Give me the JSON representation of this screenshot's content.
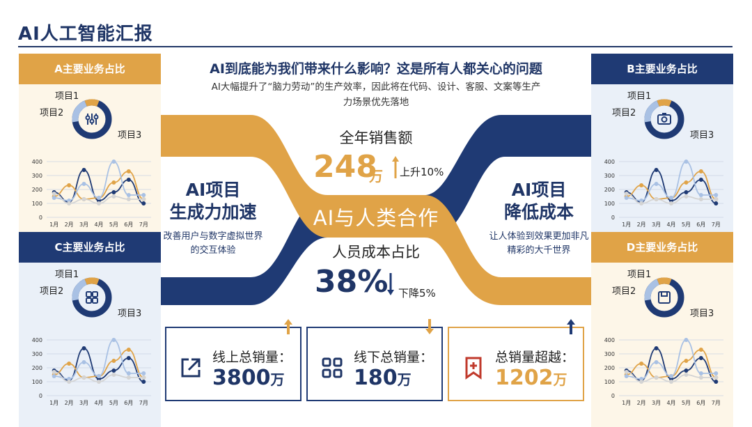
{
  "page_title": "AI人工智能汇报",
  "center": {
    "question": "AI到底能为我们带来什么影响？这是所有人都关心的问题",
    "description": "AI大幅提升了“脑力劳动”的生产效率，因此将在代码、设计、客服、文案等生产力场景优先落地",
    "sales_label": "全年销售额",
    "sales_value": "248",
    "sales_unit": "万",
    "sales_change": "上升10%",
    "band_text": "AI与人类合作",
    "cost_label": "人员成本占比",
    "cost_value": "38%",
    "cost_change": "下降5%"
  },
  "left_arm": {
    "title_line1": "AI项目",
    "title_line2": "生成力加速",
    "desc": "改善用户与数字虚拟世界的交互体验"
  },
  "right_arm": {
    "title_line1": "AI项目",
    "title_line2": "降低成本",
    "desc": "让人体验到效果更加非凡精彩的大千世界"
  },
  "panels": [
    {
      "title": "A主要业务占比",
      "icon": "sliders-icon"
    },
    {
      "title": "B主要业务占比",
      "icon": "camera-icon"
    },
    {
      "title": "C主要业务占比",
      "icon": "grid-icon"
    },
    {
      "title": "D主要业务占比",
      "icon": "save-icon"
    }
  ],
  "donut_labels": [
    "项目1",
    "项目2",
    "项目3"
  ],
  "chart_data": {
    "type": "line",
    "categories": [
      "1月",
      "2月",
      "3月",
      "4月",
      "5月",
      "6月",
      "7月"
    ],
    "ylim": [
      0,
      400
    ],
    "yticks": [
      "0",
      "100",
      "200",
      "300",
      "400"
    ],
    "series": [
      {
        "values": [
          180,
          110,
          340,
          120,
          180,
          270,
          100
        ]
      },
      {
        "values": [
          150,
          230,
          130,
          140,
          250,
          330,
          130
        ]
      },
      {
        "values": [
          140,
          120,
          240,
          140,
          400,
          160,
          160
        ]
      },
      {
        "values": [
          170,
          100,
          130,
          100,
          150,
          130,
          130
        ]
      }
    ],
    "colors": [
      "#1f3a74",
      "#e0a347",
      "#a9c1e4",
      "#d4d4d4"
    ]
  },
  "cards": [
    {
      "label": "线上总销量：",
      "value": "3800",
      "unit": "万",
      "icon": "external-link-icon"
    },
    {
      "label": "线下总销量：",
      "value": "180",
      "unit": "万",
      "icon": "grid-icon"
    },
    {
      "label": "总销量超越：",
      "value": "1202",
      "unit": "万",
      "icon": "bookmark-plus-icon"
    }
  ]
}
